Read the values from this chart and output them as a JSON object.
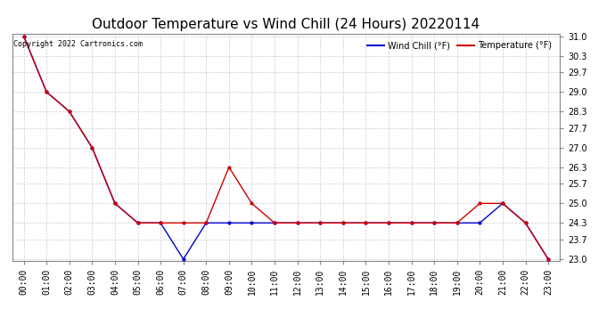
{
  "title": "Outdoor Temperature vs Wind Chill (24 Hours) 20220114",
  "copyright": "Copyright 2022 Cartronics.com",
  "legend_wind_chill": "Wind Chill (°F)",
  "legend_temperature": "Temperature (°F)",
  "x_labels": [
    "00:00",
    "01:00",
    "02:00",
    "03:00",
    "04:00",
    "05:00",
    "06:00",
    "07:00",
    "08:00",
    "09:00",
    "10:00",
    "11:00",
    "12:00",
    "13:00",
    "14:00",
    "15:00",
    "16:00",
    "17:00",
    "18:00",
    "19:00",
    "20:00",
    "21:00",
    "22:00",
    "23:00"
  ],
  "temperature": [
    31.0,
    29.0,
    28.3,
    27.0,
    25.0,
    24.3,
    24.3,
    24.3,
    24.3,
    26.3,
    25.0,
    24.3,
    24.3,
    24.3,
    24.3,
    24.3,
    24.3,
    24.3,
    24.3,
    24.3,
    25.0,
    25.0,
    24.3,
    23.0
  ],
  "wind_chill": [
    31.0,
    29.0,
    28.3,
    27.0,
    25.0,
    24.3,
    24.3,
    23.0,
    24.3,
    24.3,
    24.3,
    24.3,
    24.3,
    24.3,
    24.3,
    24.3,
    24.3,
    24.3,
    24.3,
    24.3,
    24.3,
    25.0,
    24.3,
    23.0
  ],
  "temp_color": "#cc0000",
  "wind_chill_color": "#0000cc",
  "ylim_min": 23.0,
  "ylim_max": 31.0,
  "yticks": [
    23.0,
    23.7,
    24.3,
    25.0,
    25.7,
    26.3,
    27.0,
    27.7,
    28.3,
    29.0,
    29.7,
    30.3,
    31.0
  ],
  "background_color": "#ffffff",
  "grid_color": "#cccccc",
  "title_fontsize": 11,
  "marker": ".",
  "marker_size": 4,
  "linewidth": 1.0,
  "figwidth": 6.9,
  "figheight": 3.75,
  "dpi": 100
}
